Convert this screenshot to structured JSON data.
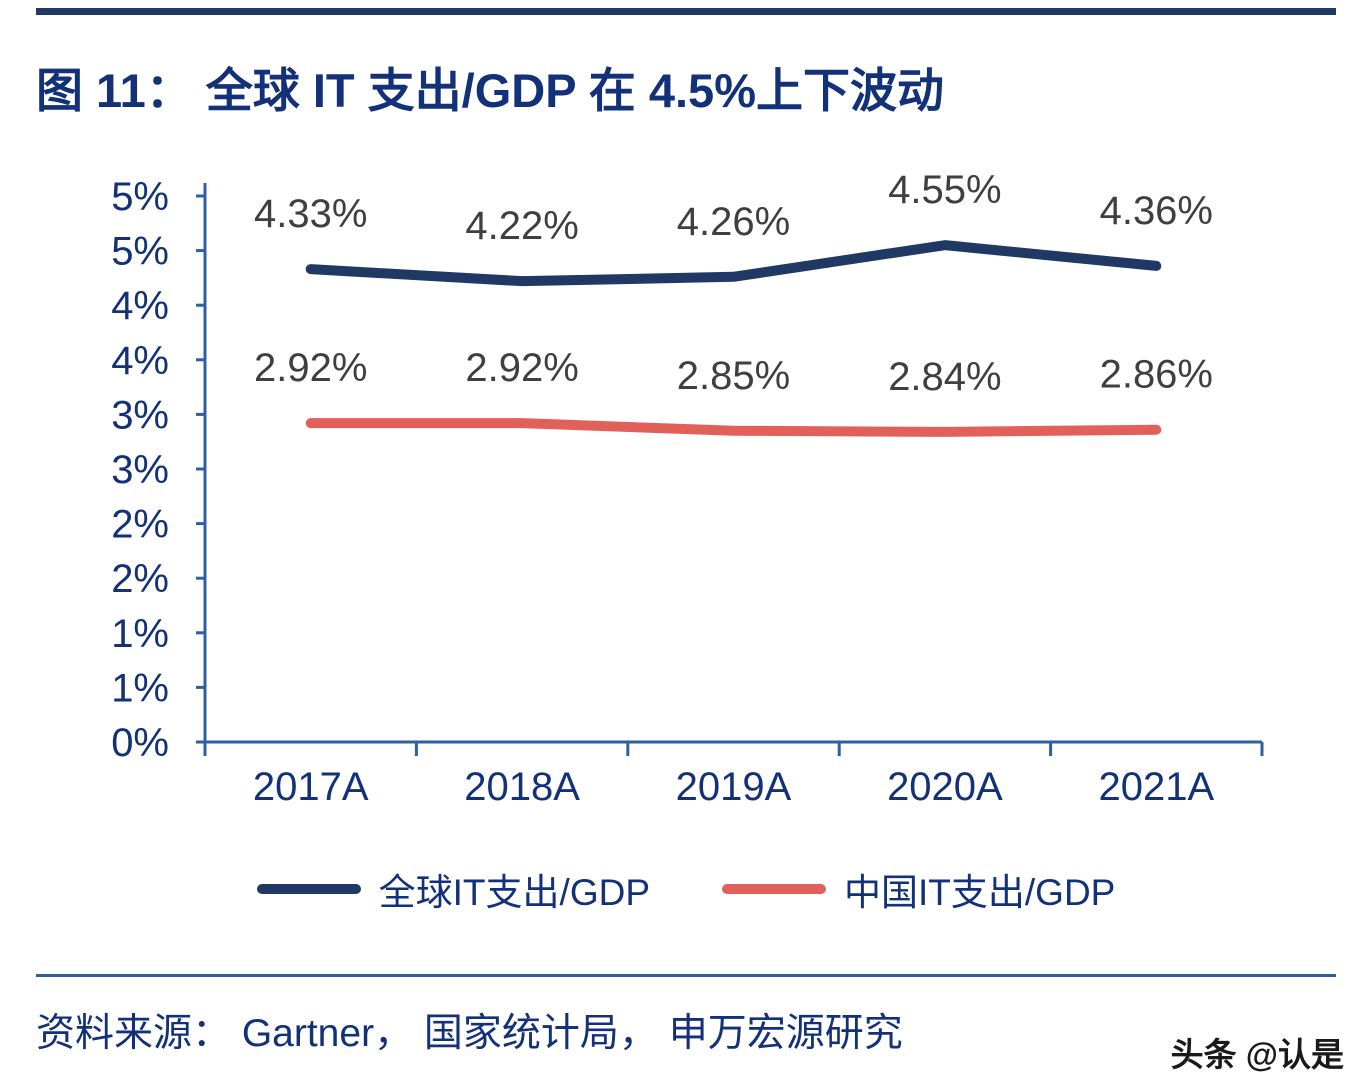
{
  "page": {
    "title": "图 11： 全球 IT 支出/GDP 在 4.5%上下波动",
    "source": "资料来源： Gartner， 国家统计局， 申万宏源研究",
    "watermark": "头条 @认是"
  },
  "colors": {
    "navy_text": "#123178",
    "axis_blue": "#2e5fa3",
    "data_label": "#3f3f3f",
    "top_rule": "#1f3864"
  },
  "chart_data": {
    "type": "line",
    "title": "图 11： 全球 IT 支出/GDP 在 4.5%上下波动",
    "categories": [
      "2017A",
      "2018A",
      "2019A",
      "2020A",
      "2021A"
    ],
    "series": [
      {
        "name": "全球IT支出/GDP",
        "color": "#1f3864",
        "values": [
          4.33,
          4.22,
          4.26,
          4.55,
          4.36
        ],
        "point_labels": [
          "4.33%",
          "4.22%",
          "4.26%",
          "4.55%",
          "4.36%"
        ]
      },
      {
        "name": "中国IT支出/GDP",
        "color": "#e2605a",
        "values": [
          2.92,
          2.92,
          2.85,
          2.84,
          2.86
        ],
        "point_labels": [
          "2.92%",
          "2.92%",
          "2.85%",
          "2.84%",
          "2.86%"
        ]
      }
    ],
    "y_axis": {
      "min": 0,
      "max": 5,
      "step": 0.5,
      "tick_labels": [
        "5%",
        "5%",
        "4%",
        "4%",
        "3%",
        "3%",
        "2%",
        "2%",
        "1%",
        "1%",
        "0%"
      ],
      "unit": "%"
    },
    "grid": false,
    "legend_position": "bottom"
  }
}
